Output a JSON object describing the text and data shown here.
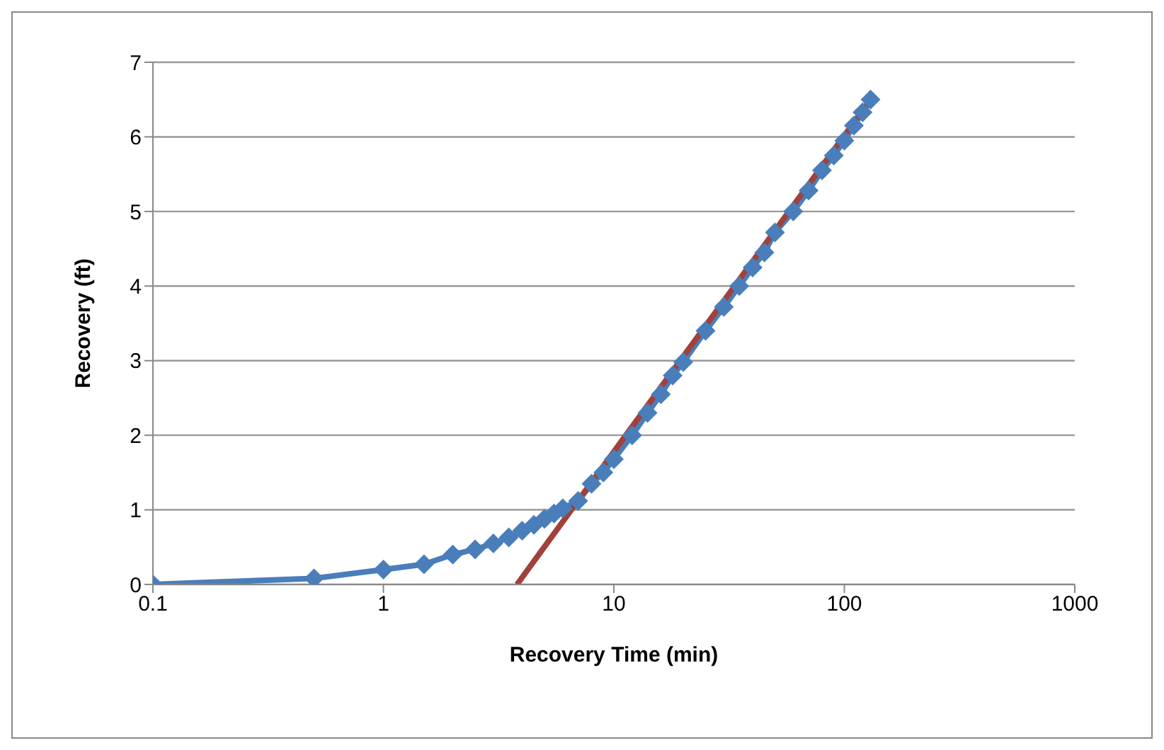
{
  "chart_data": {
    "type": "line",
    "xlabel": "Recovery Time (min)",
    "ylabel": "Recovery (ft)",
    "log": "x",
    "xlim": [
      0.1,
      1000
    ],
    "xticks": [
      0.1,
      1,
      10,
      100,
      1000
    ],
    "ylim": [
      0,
      7
    ],
    "yticks": [
      0,
      1,
      2,
      3,
      4,
      5,
      6,
      7
    ],
    "grid": "y",
    "series": [
      {
        "color": "#4a7ebb",
        "marker": "diamond",
        "x": [
          0.1,
          0.5,
          1,
          1.5,
          2,
          2.5,
          3,
          3.5,
          4,
          4.5,
          5,
          5.5,
          6,
          7,
          8,
          9,
          10,
          12,
          14,
          16,
          18,
          20,
          25,
          30,
          35,
          40,
          45,
          50,
          60,
          70,
          80,
          90,
          100,
          110,
          120,
          130
        ],
        "values": [
          0,
          0.08,
          0.2,
          0.27,
          0.4,
          0.47,
          0.55,
          0.63,
          0.72,
          0.8,
          0.88,
          0.95,
          1.02,
          1.12,
          1.35,
          1.5,
          1.68,
          2.0,
          2.3,
          2.55,
          2.8,
          2.98,
          3.4,
          3.72,
          4.0,
          4.25,
          4.45,
          4.72,
          5.0,
          5.28,
          5.55,
          5.75,
          5.95,
          6.15,
          6.33,
          6.5
        ]
      },
      {
        "type": "line",
        "color": "#a0413c",
        "marker": "none",
        "x": [
          3.8,
          130
        ],
        "values": [
          0,
          6.5
        ]
      }
    ]
  }
}
